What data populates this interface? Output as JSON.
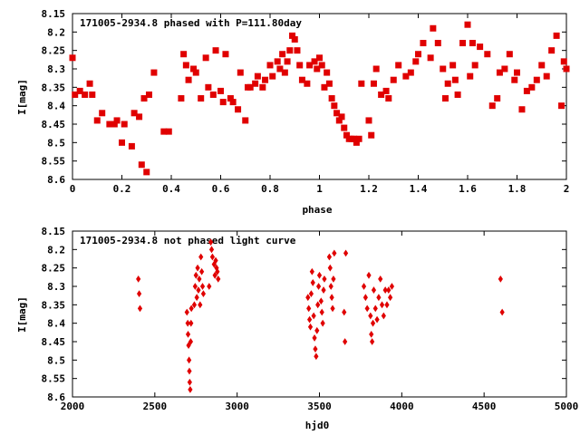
{
  "chart_data": [
    {
      "type": "scatter",
      "title": "171005-2934.8 phased with P=111.80day",
      "xlabel": "phase",
      "ylabel": "I[mag]",
      "xlim": [
        0,
        2
      ],
      "ylim": [
        8.6,
        8.15
      ],
      "y_inverted": true,
      "xticks": [
        "0",
        "0.2",
        "0.4",
        "0.6",
        "0.8",
        "1",
        "1.2",
        "1.4",
        "1.6",
        "1.8",
        "2"
      ],
      "yticks": [
        "8.15",
        "8.2",
        "8.25",
        "8.3",
        "8.35",
        "8.4",
        "8.45",
        "8.5",
        "8.55",
        "8.6"
      ],
      "grid": false,
      "marker": "filled-square",
      "color": "#e00000",
      "series": [
        {
          "x": [
            0.0,
            0.01,
            0.03,
            0.05,
            0.07,
            0.08,
            0.1,
            0.12,
            0.15,
            0.17,
            0.18,
            0.2,
            0.21,
            0.24,
            0.25,
            0.27,
            0.28,
            0.29,
            0.3,
            0.31,
            0.33,
            0.37,
            0.39,
            0.44,
            0.45,
            0.46,
            0.47,
            0.49,
            0.5,
            0.52,
            0.54,
            0.55,
            0.57,
            0.58,
            0.6,
            0.61,
            0.62,
            0.64,
            0.65,
            0.67,
            0.68,
            0.7,
            0.71,
            0.72,
            0.74,
            0.75,
            0.77,
            0.78,
            0.8,
            0.81,
            0.83,
            0.84,
            0.85,
            0.86,
            0.87,
            0.88,
            0.89,
            0.9,
            0.91,
            0.92,
            0.93,
            0.95,
            0.96,
            0.98,
            0.99,
            1.0,
            1.01,
            1.02,
            1.03,
            1.04,
            1.05,
            1.06,
            1.07,
            1.08,
            1.09,
            1.1,
            1.11,
            1.12,
            1.13,
            1.14,
            1.15,
            1.16,
            1.17,
            1.2,
            1.21,
            1.22,
            1.23,
            1.25,
            1.27,
            1.28,
            1.3,
            1.32,
            1.35,
            1.37,
            1.39,
            1.4,
            1.42,
            1.45,
            1.46,
            1.48,
            1.5,
            1.51,
            1.52,
            1.54,
            1.55,
            1.56,
            1.58,
            1.6,
            1.61,
            1.62,
            1.63,
            1.65,
            1.68,
            1.7,
            1.72,
            1.73,
            1.75,
            1.77,
            1.79,
            1.8,
            1.82,
            1.84,
            1.86,
            1.88,
            1.9,
            1.92,
            1.94,
            1.96,
            1.98,
            1.99,
            2.0
          ],
          "y": [
            8.27,
            8.37,
            8.36,
            8.37,
            8.34,
            8.37,
            8.44,
            8.42,
            8.45,
            8.45,
            8.44,
            8.5,
            8.45,
            8.51,
            8.42,
            8.43,
            8.56,
            8.38,
            8.58,
            8.37,
            8.31,
            8.47,
            8.47,
            8.38,
            8.26,
            8.29,
            8.33,
            8.3,
            8.31,
            8.38,
            8.27,
            8.35,
            8.37,
            8.25,
            8.36,
            8.39,
            8.26,
            8.38,
            8.39,
            8.41,
            8.31,
            8.44,
            8.35,
            8.35,
            8.34,
            8.32,
            8.35,
            8.33,
            8.29,
            8.32,
            8.28,
            8.3,
            8.26,
            8.31,
            8.28,
            8.25,
            8.21,
            8.22,
            8.25,
            8.29,
            8.33,
            8.34,
            8.29,
            8.28,
            8.3,
            8.27,
            8.29,
            8.35,
            8.31,
            8.34,
            8.38,
            8.4,
            8.42,
            8.44,
            8.43,
            8.46,
            8.48,
            8.49,
            8.49,
            8.49,
            8.5,
            8.49,
            8.34,
            8.44,
            8.48,
            8.34,
            8.3,
            8.37,
            8.36,
            8.38,
            8.33,
            8.29,
            8.32,
            8.31,
            8.28,
            8.26,
            8.23,
            8.27,
            8.19,
            8.23,
            8.3,
            8.38,
            8.34,
            8.29,
            8.33,
            8.37,
            8.23,
            8.18,
            8.32,
            8.23,
            8.29,
            8.24,
            8.26,
            8.4,
            8.38,
            8.31,
            8.3,
            8.26,
            8.33,
            8.31,
            8.41,
            8.36,
            8.35,
            8.33,
            8.29,
            8.32,
            8.25,
            8.21,
            8.4,
            8.28,
            8.3
          ]
        }
      ]
    },
    {
      "type": "scatter",
      "title": "171005-2934.8 not phased light curve",
      "xlabel": "hjd0",
      "ylabel": "I[mag]",
      "xlim": [
        2000,
        5000
      ],
      "ylim": [
        8.6,
        8.15
      ],
      "y_inverted": true,
      "xticks": [
        "2000",
        "2500",
        "3000",
        "3500",
        "4000",
        "4500",
        "5000"
      ],
      "yticks": [
        "8.15",
        "8.2",
        "8.25",
        "8.3",
        "8.35",
        "8.4",
        "8.45",
        "8.5",
        "8.55",
        "8.6"
      ],
      "grid": false,
      "marker": "filled-diamond",
      "color": "#e00000",
      "series": [
        {
          "x": [
            2400,
            2405,
            2410,
            2695,
            2700,
            2702,
            2705,
            2708,
            2710,
            2712,
            2715,
            2718,
            2720,
            2722,
            2740,
            2745,
            2750,
            2755,
            2760,
            2765,
            2770,
            2775,
            2780,
            2785,
            2790,
            2795,
            2830,
            2840,
            2845,
            2850,
            2860,
            2865,
            2870,
            2875,
            2880,
            2885,
            3430,
            3435,
            3440,
            3445,
            3450,
            3455,
            3460,
            3465,
            3470,
            3475,
            3480,
            3485,
            3490,
            3495,
            3500,
            3510,
            3515,
            3520,
            3525,
            3530,
            3560,
            3565,
            3570,
            3575,
            3580,
            3585,
            3590,
            3650,
            3655,
            3660,
            3770,
            3780,
            3790,
            3800,
            3810,
            3815,
            3820,
            3825,
            3830,
            3840,
            3850,
            3860,
            3870,
            3880,
            3890,
            3900,
            3910,
            3920,
            3930,
            3940,
            4600,
            4610
          ],
          "y": [
            8.28,
            8.32,
            8.36,
            8.37,
            8.4,
            8.43,
            8.46,
            8.5,
            8.53,
            8.56,
            8.58,
            8.45,
            8.4,
            8.36,
            8.35,
            8.3,
            8.27,
            8.33,
            8.25,
            8.31,
            8.28,
            8.35,
            8.22,
            8.26,
            8.3,
            8.32,
            8.3,
            8.18,
            8.2,
            8.22,
            8.24,
            8.27,
            8.23,
            8.25,
            8.26,
            8.28,
            8.33,
            8.36,
            8.39,
            8.41,
            8.32,
            8.26,
            8.29,
            8.38,
            8.44,
            8.47,
            8.49,
            8.42,
            8.35,
            8.3,
            8.27,
            8.34,
            8.37,
            8.4,
            8.31,
            8.28,
            8.22,
            8.25,
            8.3,
            8.33,
            8.36,
            8.28,
            8.21,
            8.37,
            8.45,
            8.21,
            8.3,
            8.33,
            8.36,
            8.27,
            8.38,
            8.43,
            8.45,
            8.4,
            8.31,
            8.36,
            8.39,
            8.33,
            8.28,
            8.35,
            8.38,
            8.31,
            8.35,
            8.31,
            8.33,
            8.3,
            8.28,
            8.37
          ]
        }
      ]
    }
  ]
}
